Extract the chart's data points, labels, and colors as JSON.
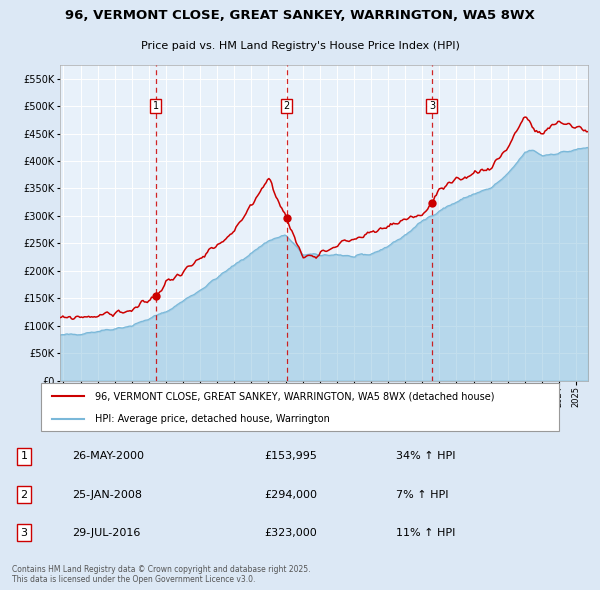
{
  "title": "96, VERMONT CLOSE, GREAT SANKEY, WARRINGTON, WA5 8WX",
  "subtitle": "Price paid vs. HM Land Registry's House Price Index (HPI)",
  "legend_line1": "96, VERMONT CLOSE, GREAT SANKEY, WARRINGTON, WA5 8WX (detached house)",
  "legend_line2": "HPI: Average price, detached house, Warrington",
  "footer": "Contains HM Land Registry data © Crown copyright and database right 2025.\nThis data is licensed under the Open Government Licence v3.0.",
  "transactions": [
    {
      "label": "1",
      "date": "26-MAY-2000",
      "price": 153995,
      "pct": "34%",
      "dir": "↑",
      "x_year": 2000.4
    },
    {
      "label": "2",
      "date": "25-JAN-2008",
      "price": 294000,
      "pct": "7%",
      "dir": "↑",
      "x_year": 2008.07
    },
    {
      "label": "3",
      "date": "29-JUL-2016",
      "price": 323000,
      "pct": "11%",
      "dir": "↑",
      "x_year": 2016.57
    }
  ],
  "hpi_color": "#7ab8d9",
  "price_color": "#cc0000",
  "bg_color": "#dce8f5",
  "plot_bg": "#e8f1fa",
  "grid_color": "#ffffff",
  "dashed_line_color": "#cc0000",
  "marker_color": "#cc0000",
  "ylim": [
    0,
    575000
  ],
  "xlim_start": 1994.8,
  "xlim_end": 2025.7
}
